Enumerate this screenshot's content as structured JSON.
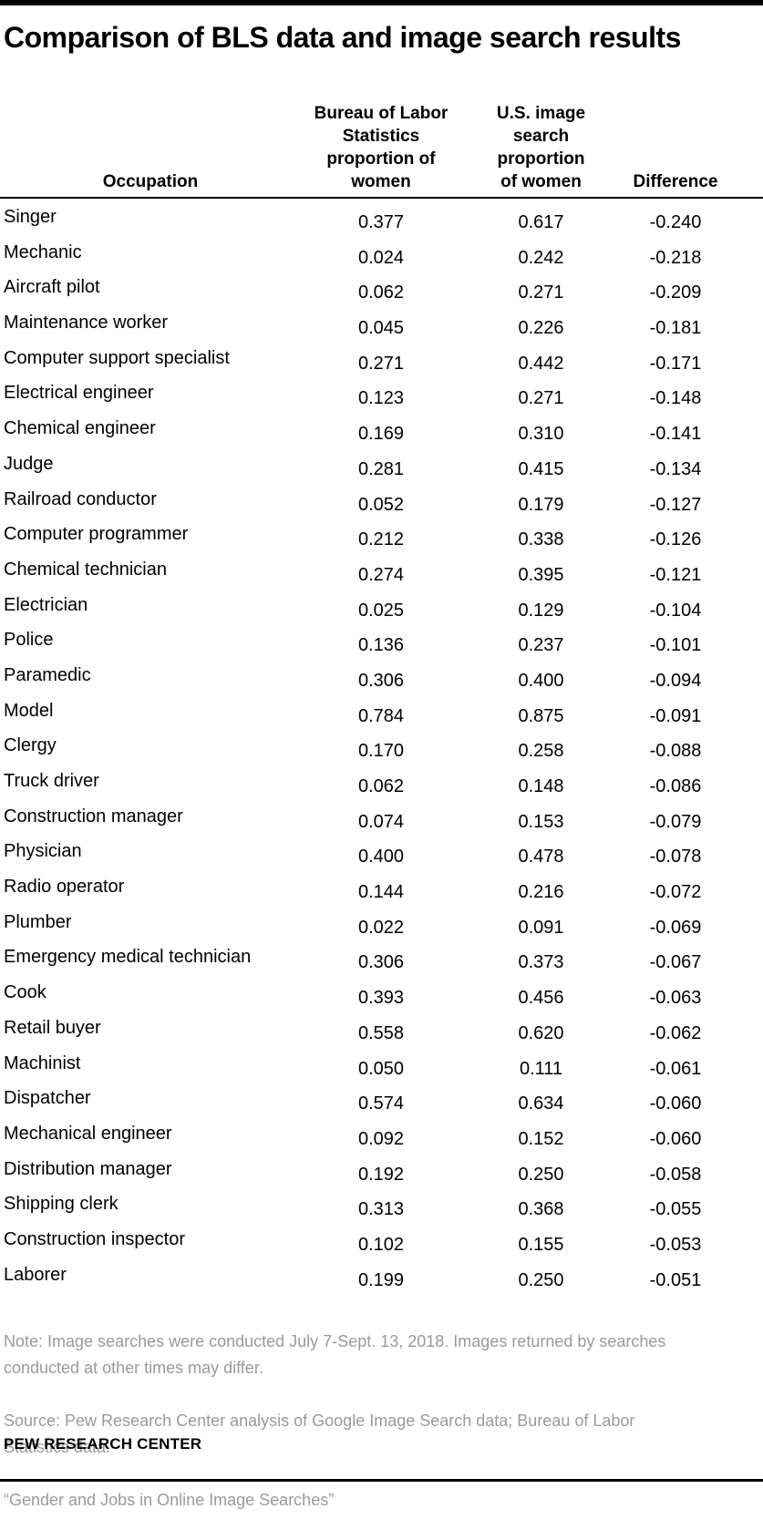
{
  "page": {
    "title": "Comparison of BLS data and image search results"
  },
  "colors": {
    "text": "#000000",
    "rule": "#000000",
    "note_gray": "#9a9a9a",
    "background": "#ffffff"
  },
  "table": {
    "headers": {
      "occupation": "Occupation",
      "bls": "Bureau of Labor\nStatistics\nproportion of\nwomen",
      "search": "U.S. image\nsearch\nproportion\nof women",
      "difference": "Difference"
    },
    "rows": [
      {
        "occupation": "Singer",
        "bls": "0.377",
        "search": "0.617",
        "difference": "-0.240"
      },
      {
        "occupation": "Mechanic",
        "bls": "0.024",
        "search": "0.242",
        "difference": "-0.218"
      },
      {
        "occupation": "Aircraft pilot",
        "bls": "0.062",
        "search": "0.271",
        "difference": "-0.209"
      },
      {
        "occupation": "Maintenance worker",
        "bls": "0.045",
        "search": "0.226",
        "difference": "-0.181"
      },
      {
        "occupation": "Computer support specialist",
        "bls": "0.271",
        "search": "0.442",
        "difference": "-0.171"
      },
      {
        "occupation": "Electrical engineer",
        "bls": "0.123",
        "search": "0.271",
        "difference": "-0.148"
      },
      {
        "occupation": "Chemical engineer",
        "bls": "0.169",
        "search": "0.310",
        "difference": "-0.141"
      },
      {
        "occupation": "Judge",
        "bls": "0.281",
        "search": "0.415",
        "difference": "-0.134"
      },
      {
        "occupation": "Railroad conductor",
        "bls": "0.052",
        "search": "0.179",
        "difference": "-0.127"
      },
      {
        "occupation": "Computer programmer",
        "bls": "0.212",
        "search": "0.338",
        "difference": "-0.126"
      },
      {
        "occupation": "Chemical technician",
        "bls": "0.274",
        "search": "0.395",
        "difference": "-0.121"
      },
      {
        "occupation": "Electrician",
        "bls": "0.025",
        "search": "0.129",
        "difference": "-0.104"
      },
      {
        "occupation": "Police",
        "bls": "0.136",
        "search": "0.237",
        "difference": "-0.101"
      },
      {
        "occupation": "Paramedic",
        "bls": "0.306",
        "search": "0.400",
        "difference": "-0.094"
      },
      {
        "occupation": "Model",
        "bls": "0.784",
        "search": "0.875",
        "difference": "-0.091"
      },
      {
        "occupation": "Clergy",
        "bls": "0.170",
        "search": "0.258",
        "difference": "-0.088"
      },
      {
        "occupation": "Truck driver",
        "bls": "0.062",
        "search": "0.148",
        "difference": "-0.086"
      },
      {
        "occupation": "Construction manager",
        "bls": "0.074",
        "search": "0.153",
        "difference": "-0.079"
      },
      {
        "occupation": "Physician",
        "bls": "0.400",
        "search": "0.478",
        "difference": "-0.078"
      },
      {
        "occupation": "Radio operator",
        "bls": "0.144",
        "search": "0.216",
        "difference": "-0.072"
      },
      {
        "occupation": "Plumber",
        "bls": "0.022",
        "search": "0.091",
        "difference": "-0.069"
      },
      {
        "occupation": "Emergency medical technician",
        "bls": "0.306",
        "search": "0.373",
        "difference": "-0.067"
      },
      {
        "occupation": "Cook",
        "bls": "0.393",
        "search": "0.456",
        "difference": "-0.063"
      },
      {
        "occupation": "Retail buyer",
        "bls": "0.558",
        "search": "0.620",
        "difference": "-0.062"
      },
      {
        "occupation": "Machinist",
        "bls": "0.050",
        "search": "0.111",
        "difference": "-0.061"
      },
      {
        "occupation": "Dispatcher",
        "bls": "0.574",
        "search": "0.634",
        "difference": "-0.060"
      },
      {
        "occupation": "Mechanical engineer",
        "bls": "0.092",
        "search": "0.152",
        "difference": "-0.060"
      },
      {
        "occupation": "Distribution manager",
        "bls": "0.192",
        "search": "0.250",
        "difference": "-0.058"
      },
      {
        "occupation": "Shipping clerk",
        "bls": "0.313",
        "search": "0.368",
        "difference": "-0.055"
      },
      {
        "occupation": "Construction inspector",
        "bls": "0.102",
        "search": "0.155",
        "difference": "-0.053"
      },
      {
        "occupation": "Laborer",
        "bls": "0.199",
        "search": "0.250",
        "difference": "-0.051"
      }
    ]
  },
  "footer": {
    "note": "Note: Image searches were conducted July 7-Sept. 13, 2018. Images returned by searches\nconducted at other times may differ.",
    "source": "Source: Pew Research Center analysis of Google Image Search data; Bureau of Labor\nStatistics data.",
    "quote": "“Gender and Jobs in Online Image Searches”",
    "brand": "PEW RESEARCH CENTER"
  },
  "chart_data": {
    "type": "table",
    "title": "Comparison of BLS data and image search results",
    "columns": [
      "Occupation",
      "Bureau of Labor Statistics proportion of women",
      "U.S. image search proportion of women",
      "Difference"
    ],
    "rows": [
      [
        "Singer",
        0.377,
        0.617,
        -0.24
      ],
      [
        "Mechanic",
        0.024,
        0.242,
        -0.218
      ],
      [
        "Aircraft pilot",
        0.062,
        0.271,
        -0.209
      ],
      [
        "Maintenance worker",
        0.045,
        0.226,
        -0.181
      ],
      [
        "Computer support specialist",
        0.271,
        0.442,
        -0.171
      ],
      [
        "Electrical engineer",
        0.123,
        0.271,
        -0.148
      ],
      [
        "Chemical engineer",
        0.169,
        0.31,
        -0.141
      ],
      [
        "Judge",
        0.281,
        0.415,
        -0.134
      ],
      [
        "Railroad conductor",
        0.052,
        0.179,
        -0.127
      ],
      [
        "Computer programmer",
        0.212,
        0.338,
        -0.126
      ],
      [
        "Chemical technician",
        0.274,
        0.395,
        -0.121
      ],
      [
        "Electrician",
        0.025,
        0.129,
        -0.104
      ],
      [
        "Police",
        0.136,
        0.237,
        -0.101
      ],
      [
        "Paramedic",
        0.306,
        0.4,
        -0.094
      ],
      [
        "Model",
        0.784,
        0.875,
        -0.091
      ],
      [
        "Clergy",
        0.17,
        0.258,
        -0.088
      ],
      [
        "Truck driver",
        0.062,
        0.148,
        -0.086
      ],
      [
        "Construction manager",
        0.074,
        0.153,
        -0.079
      ],
      [
        "Physician",
        0.4,
        0.478,
        -0.078
      ],
      [
        "Radio operator",
        0.144,
        0.216,
        -0.072
      ],
      [
        "Plumber",
        0.022,
        0.091,
        -0.069
      ],
      [
        "Emergency medical technician",
        0.306,
        0.373,
        -0.067
      ],
      [
        "Cook",
        0.393,
        0.456,
        -0.063
      ],
      [
        "Retail buyer",
        0.558,
        0.62,
        -0.062
      ],
      [
        "Machinist",
        0.05,
        0.111,
        -0.061
      ],
      [
        "Dispatcher",
        0.574,
        0.634,
        -0.06
      ],
      [
        "Mechanical engineer",
        0.092,
        0.152,
        -0.06
      ],
      [
        "Distribution manager",
        0.192,
        0.25,
        -0.058
      ],
      [
        "Shipping clerk",
        0.313,
        0.368,
        -0.055
      ],
      [
        "Construction inspector",
        0.102,
        0.155,
        -0.053
      ],
      [
        "Laborer",
        0.199,
        0.25,
        -0.051
      ]
    ]
  }
}
